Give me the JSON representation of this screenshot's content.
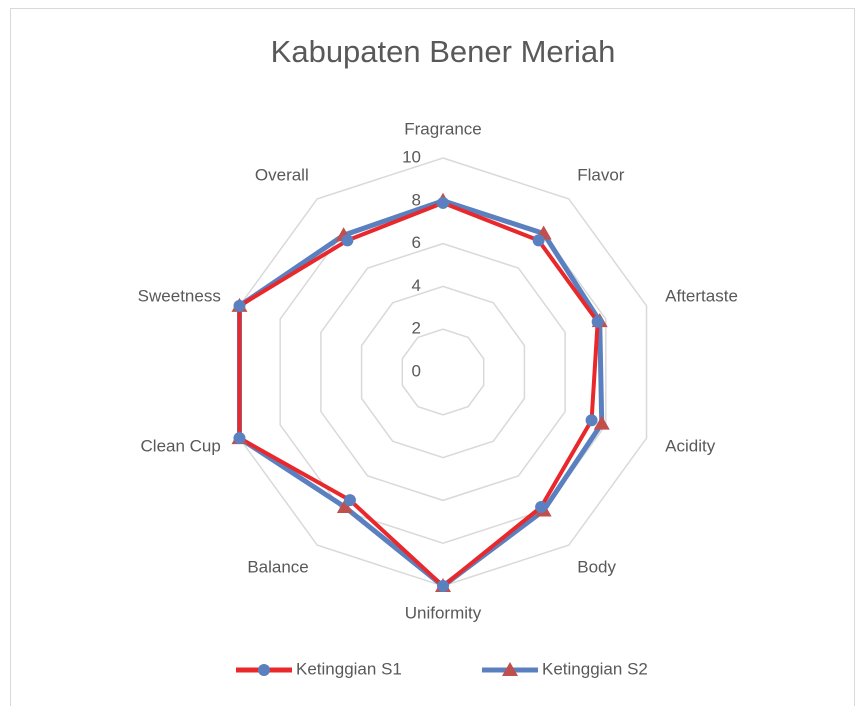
{
  "chart_data": {
    "type": "radar",
    "title": "Kabupaten Bener Meriah",
    "categories": [
      "Fragrance",
      "Flavor",
      "Aftertaste",
      "Acidity",
      "Body",
      "Uniformity",
      "Balance",
      "Clean Cup",
      "Sweetness",
      "Overall"
    ],
    "series": [
      {
        "name": "Ketinggian S1",
        "color": "#e8282a",
        "marker_color": "#5b80c0",
        "marker": "circle",
        "values": [
          7.9,
          7.6,
          7.6,
          7.3,
          7.8,
          10,
          7.4,
          10,
          10,
          7.6
        ]
      },
      {
        "name": "Ketinggian S2",
        "color": "#5b80c0",
        "marker_color": "#c0504d",
        "marker": "triangle",
        "values": [
          8.0,
          8.0,
          7.7,
          7.8,
          8.0,
          10,
          7.8,
          10,
          10,
          7.9
        ]
      }
    ],
    "rlim": [
      0,
      10
    ],
    "rticks": [
      0,
      2,
      4,
      6,
      8,
      10
    ],
    "grid": true,
    "legend": "bottom"
  }
}
